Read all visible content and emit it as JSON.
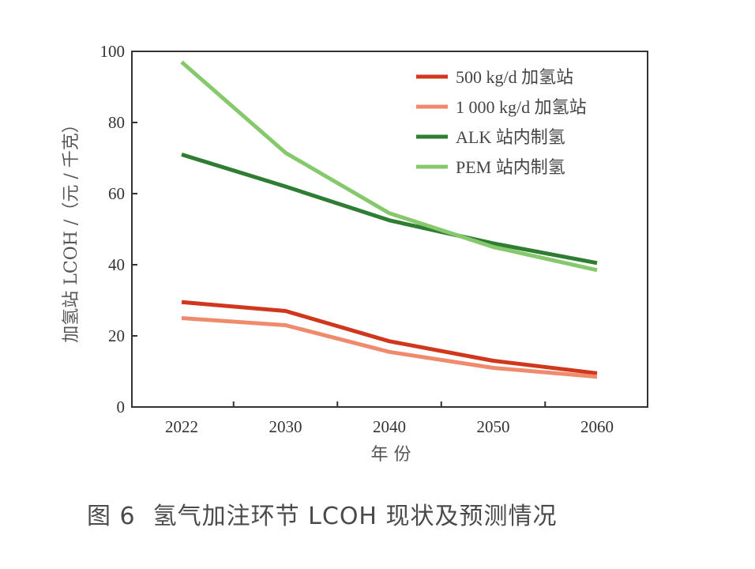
{
  "chart_data": {
    "type": "line",
    "x": [
      "2022",
      "2030",
      "2040",
      "2050",
      "2060"
    ],
    "series": [
      {
        "name": "500 kg/d 加氢站",
        "color": "#d0381e",
        "values": [
          29.5,
          27.0,
          18.5,
          13.0,
          9.5
        ]
      },
      {
        "name": "1 000 kg/d 加氢站",
        "color": "#ef8a6c",
        "values": [
          25.0,
          23.0,
          15.5,
          11.0,
          8.5
        ]
      },
      {
        "name": "ALK 站内制氢",
        "color": "#2e7d32",
        "values": [
          71.0,
          62.0,
          52.5,
          46.0,
          40.5
        ]
      },
      {
        "name": "PEM 站内制氢",
        "color": "#86c86c",
        "values": [
          97.0,
          71.5,
          54.5,
          45.0,
          38.5
        ]
      }
    ],
    "ylim": [
      0,
      100
    ],
    "yticks": [
      0,
      20,
      40,
      60,
      80,
      100
    ],
    "xlabel": "年 份",
    "ylabel": "加氢站 LCOH /（元 / 千克）",
    "legend_position": "top-right",
    "grid": false
  },
  "caption": {
    "number": "图 6",
    "title": "氢气加注环节 LCOH 现状及预测情况"
  }
}
